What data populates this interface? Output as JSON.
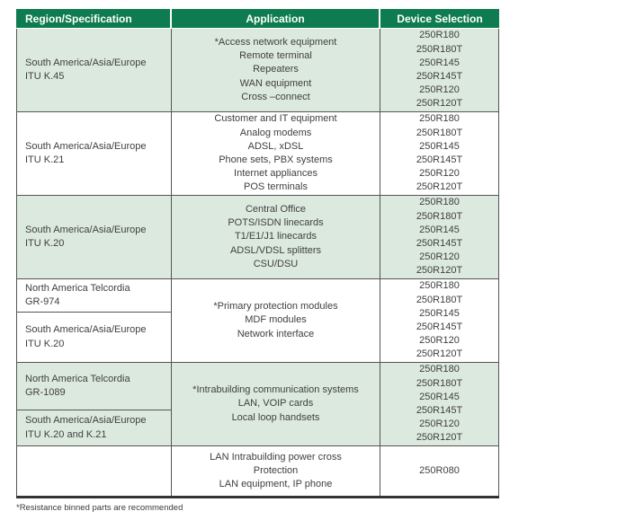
{
  "colors": {
    "header_green": "#0e7c50",
    "row_green": "#dce9de",
    "line_gray": "#555555",
    "text_gray": "#3f3f3f"
  },
  "table": {
    "columns": [
      "Region/Specification",
      "Application",
      "Device Selection"
    ],
    "sections": [
      {
        "shaded": true,
        "regions": [
          [
            "South America/Asia/Europe",
            "ITU K.45"
          ]
        ],
        "applications": [
          "*Access network equipment",
          "Remote terminal",
          "Repeaters",
          "WAN equipment",
          "Cross –connect"
        ],
        "devices": [
          "250R180",
          "250R180T",
          "250R145",
          "250R145T",
          "250R120",
          "250R120T"
        ]
      },
      {
        "shaded": false,
        "regions": [
          [
            "South America/Asia/Europe",
            "ITU K.21"
          ]
        ],
        "applications": [
          "Customer and IT equipment",
          "Analog modems",
          "ADSL, xDSL",
          "Phone sets, PBX systems",
          "Internet appliances",
          "POS terminals"
        ],
        "devices": [
          "250R180",
          "250R180T",
          "250R145",
          "250R145T",
          "250R120",
          "250R120T"
        ]
      },
      {
        "shaded": true,
        "regions": [
          [
            "South America/Asia/Europe",
            "ITU K.20"
          ]
        ],
        "applications": [
          "Central Office",
          "POTS/ISDN linecards",
          "T1/E1/J1 linecards",
          "ADSL/VDSL splitters",
          "CSU/DSU"
        ],
        "devices": [
          "250R180",
          "250R180T",
          "250R145",
          "250R145T",
          "250R120",
          "250R120T"
        ]
      },
      {
        "shaded": false,
        "regions": [
          [
            "North America Telcordia",
            "GR-974"
          ],
          [
            "South America/Asia/Europe",
            "ITU K.20"
          ]
        ],
        "applications": [
          "*Primary protection modules",
          "MDF modules",
          "Network interface"
        ],
        "devices": [
          "250R180",
          "250R180T",
          "250R145",
          "250R145T",
          "250R120",
          "250R120T"
        ]
      },
      {
        "shaded": true,
        "regions": [
          [
            "North America Telcordia",
            "GR-1089"
          ],
          [
            "South America/Asia/Europe",
            "ITU K.20 and K.21"
          ]
        ],
        "applications": [
          "*Intrabuilding communication systems",
          "LAN, VOIP cards",
          "Local loop handsets"
        ],
        "devices": [
          "250R180",
          "250R180T",
          "250R145",
          "250R145T",
          "250R120",
          "250R120T"
        ]
      },
      {
        "shaded": false,
        "regions": [
          []
        ],
        "applications": [
          "LAN Intrabuilding power cross",
          "Protection",
          "LAN equipment, IP phone"
        ],
        "devices": [
          "250R080"
        ]
      }
    ]
  },
  "footnote": "*Resistance binned parts are recommended"
}
